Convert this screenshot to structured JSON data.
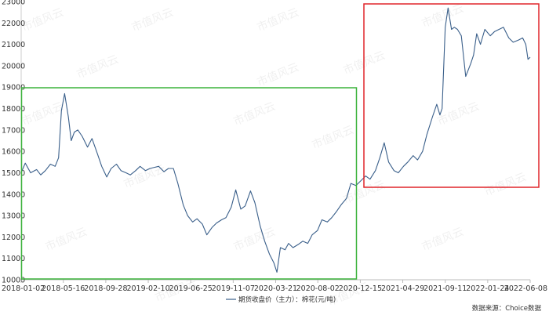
{
  "chart_data": {
    "type": "line",
    "title": "",
    "xlabel": "",
    "ylabel": "",
    "ylim": [
      10000,
      23000
    ],
    "y_ticks": [
      10000,
      11000,
      12000,
      13000,
      14000,
      15000,
      16000,
      17000,
      18000,
      19000,
      20000,
      21000,
      22000,
      23000
    ],
    "x_ticks": [
      "2018-01-02",
      "2018-05-16",
      "2018-09-28",
      "2019-02-10",
      "2019-06-25",
      "2019-11-07",
      "2020-03-21",
      "2020-08-02",
      "2020-12-15",
      "2021-04-29",
      "2021-09-11",
      "2022-01-24",
      "2022-06-08"
    ],
    "grid": false,
    "legend_position": "bottom-center",
    "series": [
      {
        "name": "期货收盘价（主力）：棉花(元/吨)",
        "color": "#3a5f8a",
        "x": [
          "2018-01-02",
          "2018-01-15",
          "2018-02-01",
          "2018-02-20",
          "2018-03-05",
          "2018-03-20",
          "2018-04-05",
          "2018-04-20",
          "2018-05-01",
          "2018-05-10",
          "2018-05-20",
          "2018-06-01",
          "2018-06-10",
          "2018-06-20",
          "2018-07-01",
          "2018-07-15",
          "2018-08-01",
          "2018-08-15",
          "2018-09-01",
          "2018-09-15",
          "2018-10-01",
          "2018-10-15",
          "2018-11-01",
          "2018-11-15",
          "2018-12-01",
          "2018-12-15",
          "2019-01-01",
          "2019-01-15",
          "2019-02-01",
          "2019-02-15",
          "2019-03-01",
          "2019-03-15",
          "2019-04-01",
          "2019-04-15",
          "2019-05-01",
          "2019-05-15",
          "2019-06-01",
          "2019-06-15",
          "2019-07-01",
          "2019-07-15",
          "2019-08-01",
          "2019-08-15",
          "2019-09-01",
          "2019-09-15",
          "2019-10-01",
          "2019-10-15",
          "2019-11-01",
          "2019-11-15",
          "2019-12-01",
          "2019-12-15",
          "2020-01-01",
          "2020-01-15",
          "2020-02-01",
          "2020-02-15",
          "2020-03-01",
          "2020-03-15",
          "2020-03-25",
          "2020-04-05",
          "2020-04-20",
          "2020-05-01",
          "2020-05-15",
          "2020-06-01",
          "2020-06-15",
          "2020-07-01",
          "2020-07-15",
          "2020-08-01",
          "2020-08-15",
          "2020-09-01",
          "2020-09-15",
          "2020-10-01",
          "2020-10-15",
          "2020-11-01",
          "2020-11-15",
          "2020-12-01",
          "2020-12-15",
          "2021-01-01",
          "2021-01-15",
          "2021-02-01",
          "2021-02-15",
          "2021-03-01",
          "2021-03-15",
          "2021-04-01",
          "2021-04-15",
          "2021-05-01",
          "2021-05-15",
          "2021-06-01",
          "2021-06-15",
          "2021-07-01",
          "2021-07-15",
          "2021-08-01",
          "2021-08-15",
          "2021-08-25",
          "2021-09-01",
          "2021-09-11",
          "2021-09-20",
          "2021-10-01",
          "2021-10-10",
          "2021-10-20",
          "2021-11-01",
          "2021-11-15",
          "2021-12-01",
          "2021-12-10",
          "2021-12-20",
          "2022-01-01",
          "2022-01-15",
          "2022-02-01",
          "2022-02-15",
          "2022-03-01",
          "2022-03-15",
          "2022-04-01",
          "2022-04-15",
          "2022-05-01",
          "2022-05-15",
          "2022-05-25",
          "2022-06-01",
          "2022-06-08"
        ],
        "values": [
          15000,
          15450,
          15000,
          15150,
          14900,
          15100,
          15400,
          15300,
          15700,
          17900,
          18700,
          17600,
          16500,
          16900,
          17000,
          16700,
          16200,
          16600,
          15900,
          15300,
          14800,
          15200,
          15400,
          15100,
          15000,
          14900,
          15100,
          15300,
          15100,
          15200,
          15250,
          15300,
          15050,
          15200,
          15200,
          14500,
          13500,
          13000,
          12700,
          12850,
          12600,
          12100,
          12450,
          12650,
          12800,
          12900,
          13400,
          14200,
          13300,
          13450,
          14150,
          13600,
          12500,
          11800,
          11200,
          10800,
          10350,
          11500,
          11400,
          11700,
          11500,
          11650,
          11800,
          11700,
          12100,
          12300,
          12800,
          12700,
          12900,
          13200,
          13500,
          13800,
          14500,
          14400,
          14600,
          14850,
          14700,
          15100,
          15700,
          16400,
          15500,
          15100,
          15000,
          15300,
          15500,
          15800,
          15600,
          16000,
          16800,
          17600,
          18200,
          17700,
          18000,
          21800,
          22700,
          21700,
          21800,
          21700,
          21400,
          19500,
          20100,
          20500,
          21500,
          21000,
          21700,
          21400,
          21600,
          21700,
          21800,
          21300,
          21100,
          21200,
          21300,
          21000,
          20300,
          20400
        ]
      }
    ],
    "source": "数据来源：Choice数据",
    "watermark": "市值风云"
  }
}
